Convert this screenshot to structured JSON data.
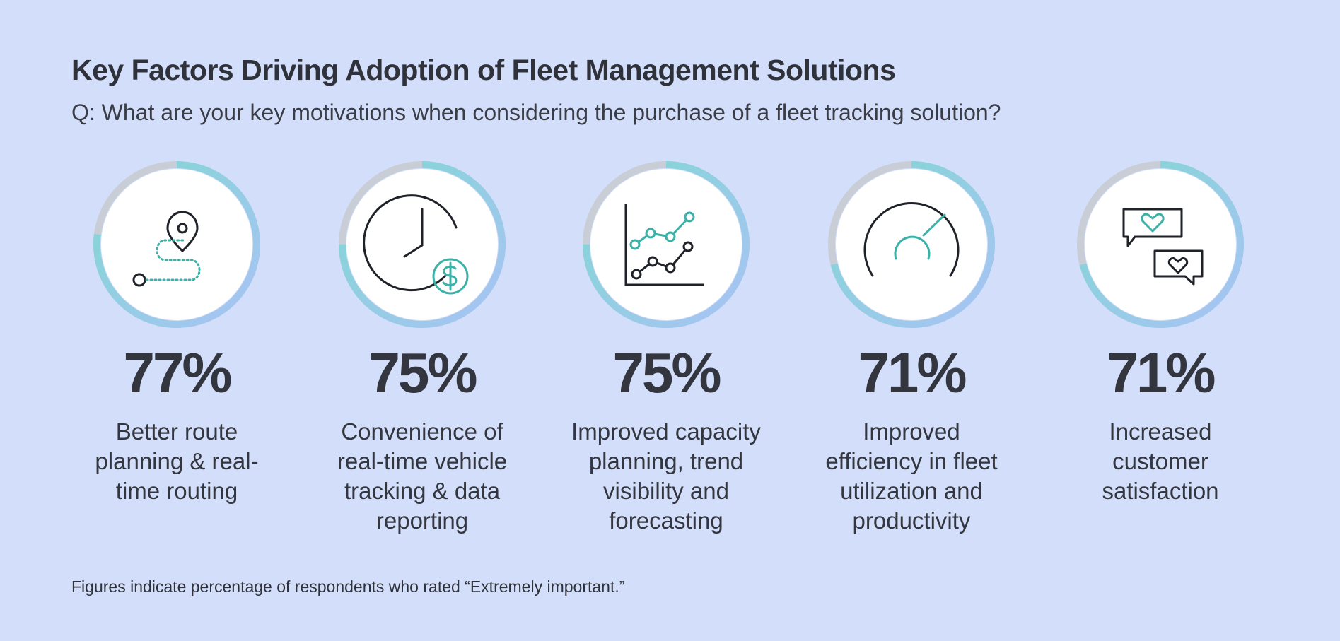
{
  "header": {
    "title": "Key Factors Driving Adoption of Fleet Management Solutions",
    "subtitle": "Q: What are your key motivations when considering the purchase of a fleet tracking solution?"
  },
  "footnote": "Figures indicate percentage of respondents who rated “Extremely important.”",
  "colors": {
    "background": "#d3dffa",
    "ring_track": "#c9cdd6",
    "ring_start": "#a9c3f5",
    "ring_end": "#7fd8d2",
    "icon_accent": "#3bb1a8",
    "text": "#33363e"
  },
  "chart_data": {
    "type": "bar",
    "categories": [
      "Better route planning & real-time routing",
      "Convenience of real-time vehicle tracking & data reporting",
      "Improved capacity planning, trend visibility and forecasting",
      "Improved efficiency in fleet utilization and productivity",
      "Increased customer satisfaction"
    ],
    "values": [
      77,
      75,
      75,
      71,
      71
    ],
    "ylim": [
      0,
      100
    ],
    "title": "Key Factors Driving Adoption of Fleet Management Solutions",
    "xlabel": "",
    "ylabel": ""
  },
  "items": [
    {
      "value": 77,
      "pct": "77%",
      "lines": [
        "Better route",
        "planning & real-",
        "time routing"
      ],
      "icon": "route-map-icon"
    },
    {
      "value": 75,
      "pct": "75%",
      "lines": [
        "Convenience of",
        "real-time vehicle",
        "tracking & data",
        "reporting"
      ],
      "icon": "clock-dollar-icon"
    },
    {
      "value": 75,
      "pct": "75%",
      "lines": [
        "Improved capacity",
        "planning, trend",
        "visibility and",
        "forecasting"
      ],
      "icon": "line-chart-icon"
    },
    {
      "value": 71,
      "pct": "71%",
      "lines": [
        "Improved",
        "efficiency in fleet",
        "utilization and",
        "productivity"
      ],
      "icon": "gauge-icon"
    },
    {
      "value": 71,
      "pct": "71%",
      "lines": [
        "Increased",
        "customer",
        "satisfaction"
      ],
      "icon": "chat-hearts-icon"
    }
  ]
}
